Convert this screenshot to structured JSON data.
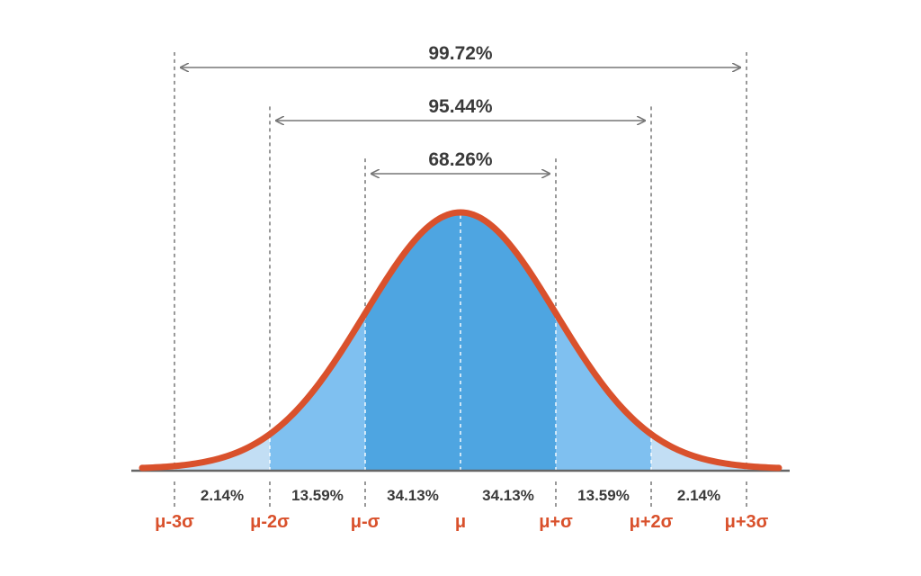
{
  "chart_data": {
    "type": "area",
    "title": "",
    "xlabel": "",
    "ylabel": "",
    "xlim": [
      -3.3,
      3.3
    ],
    "x_ticks": [
      -3,
      -2,
      -1,
      0,
      1,
      2,
      3
    ],
    "sigma_labels": [
      "μ-3σ",
      "μ-2σ",
      "μ-σ",
      "μ",
      "μ+σ",
      "μ+2σ",
      "μ+3σ"
    ],
    "regions": [
      {
        "from": -3,
        "to": -2,
        "value": 2.14,
        "label": "2.14%"
      },
      {
        "from": -2,
        "to": -1,
        "value": 13.59,
        "label": "13.59%"
      },
      {
        "from": -1,
        "to": 0,
        "value": 34.13,
        "label": "34.13%"
      },
      {
        "from": 0,
        "to": 1,
        "value": 34.13,
        "label": "34.13%"
      },
      {
        "from": 1,
        "to": 2,
        "value": 13.59,
        "label": "13.59%"
      },
      {
        "from": 2,
        "to": 3,
        "value": 2.14,
        "label": "2.14%"
      }
    ],
    "spans": [
      {
        "from": -3,
        "to": 3,
        "value": 99.72,
        "label": "99.72%"
      },
      {
        "from": -2,
        "to": 2,
        "value": 95.44,
        "label": "95.44%"
      },
      {
        "from": -1,
        "to": 1,
        "value": 68.26,
        "label": "68.26%"
      }
    ],
    "colors": {
      "curve": "#d9512c",
      "fill_inner": "#4ea5e1",
      "fill_middle": "#7fc0f0",
      "fill_outer": "#c2def4",
      "axis": "#666666",
      "guide": "#555555",
      "span_arrow": "#777777",
      "text": "#3a3a3a",
      "sigma_text": "#d9512c"
    }
  }
}
